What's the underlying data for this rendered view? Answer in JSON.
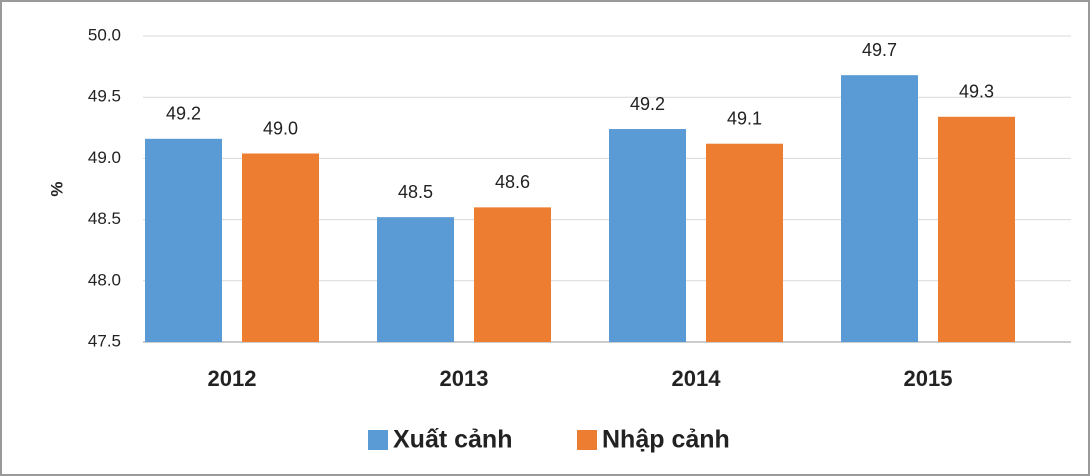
{
  "chart_data": {
    "type": "bar",
    "y_label": "%",
    "categories": [
      "2012",
      "2013",
      "2014",
      "2015"
    ],
    "series": [
      {
        "name": "Xuất cảnh",
        "color": "#5b9bd5",
        "values": [
          49.16,
          48.52,
          49.24,
          49.68
        ],
        "value_labels": [
          "49.2",
          "48.5",
          "49.2",
          "49.7"
        ]
      },
      {
        "name": "Nhập cảnh",
        "color": "#ed7d31",
        "values": [
          49.04,
          48.6,
          49.12,
          49.34
        ],
        "value_labels": [
          "49.0",
          "48.6",
          "49.1",
          "49.3"
        ]
      }
    ],
    "ylim": [
      47.5,
      50
    ],
    "yticks": [
      {
        "value": 47.5,
        "label": "47.5"
      },
      {
        "value": 48,
        "label": "48.0"
      },
      {
        "value": 48.5,
        "label": "48.5"
      },
      {
        "value": 49,
        "label": "49.0"
      },
      {
        "value": 49.5,
        "label": "49.5"
      },
      {
        "value": 50,
        "label": "50.0"
      }
    ],
    "grid": true
  }
}
